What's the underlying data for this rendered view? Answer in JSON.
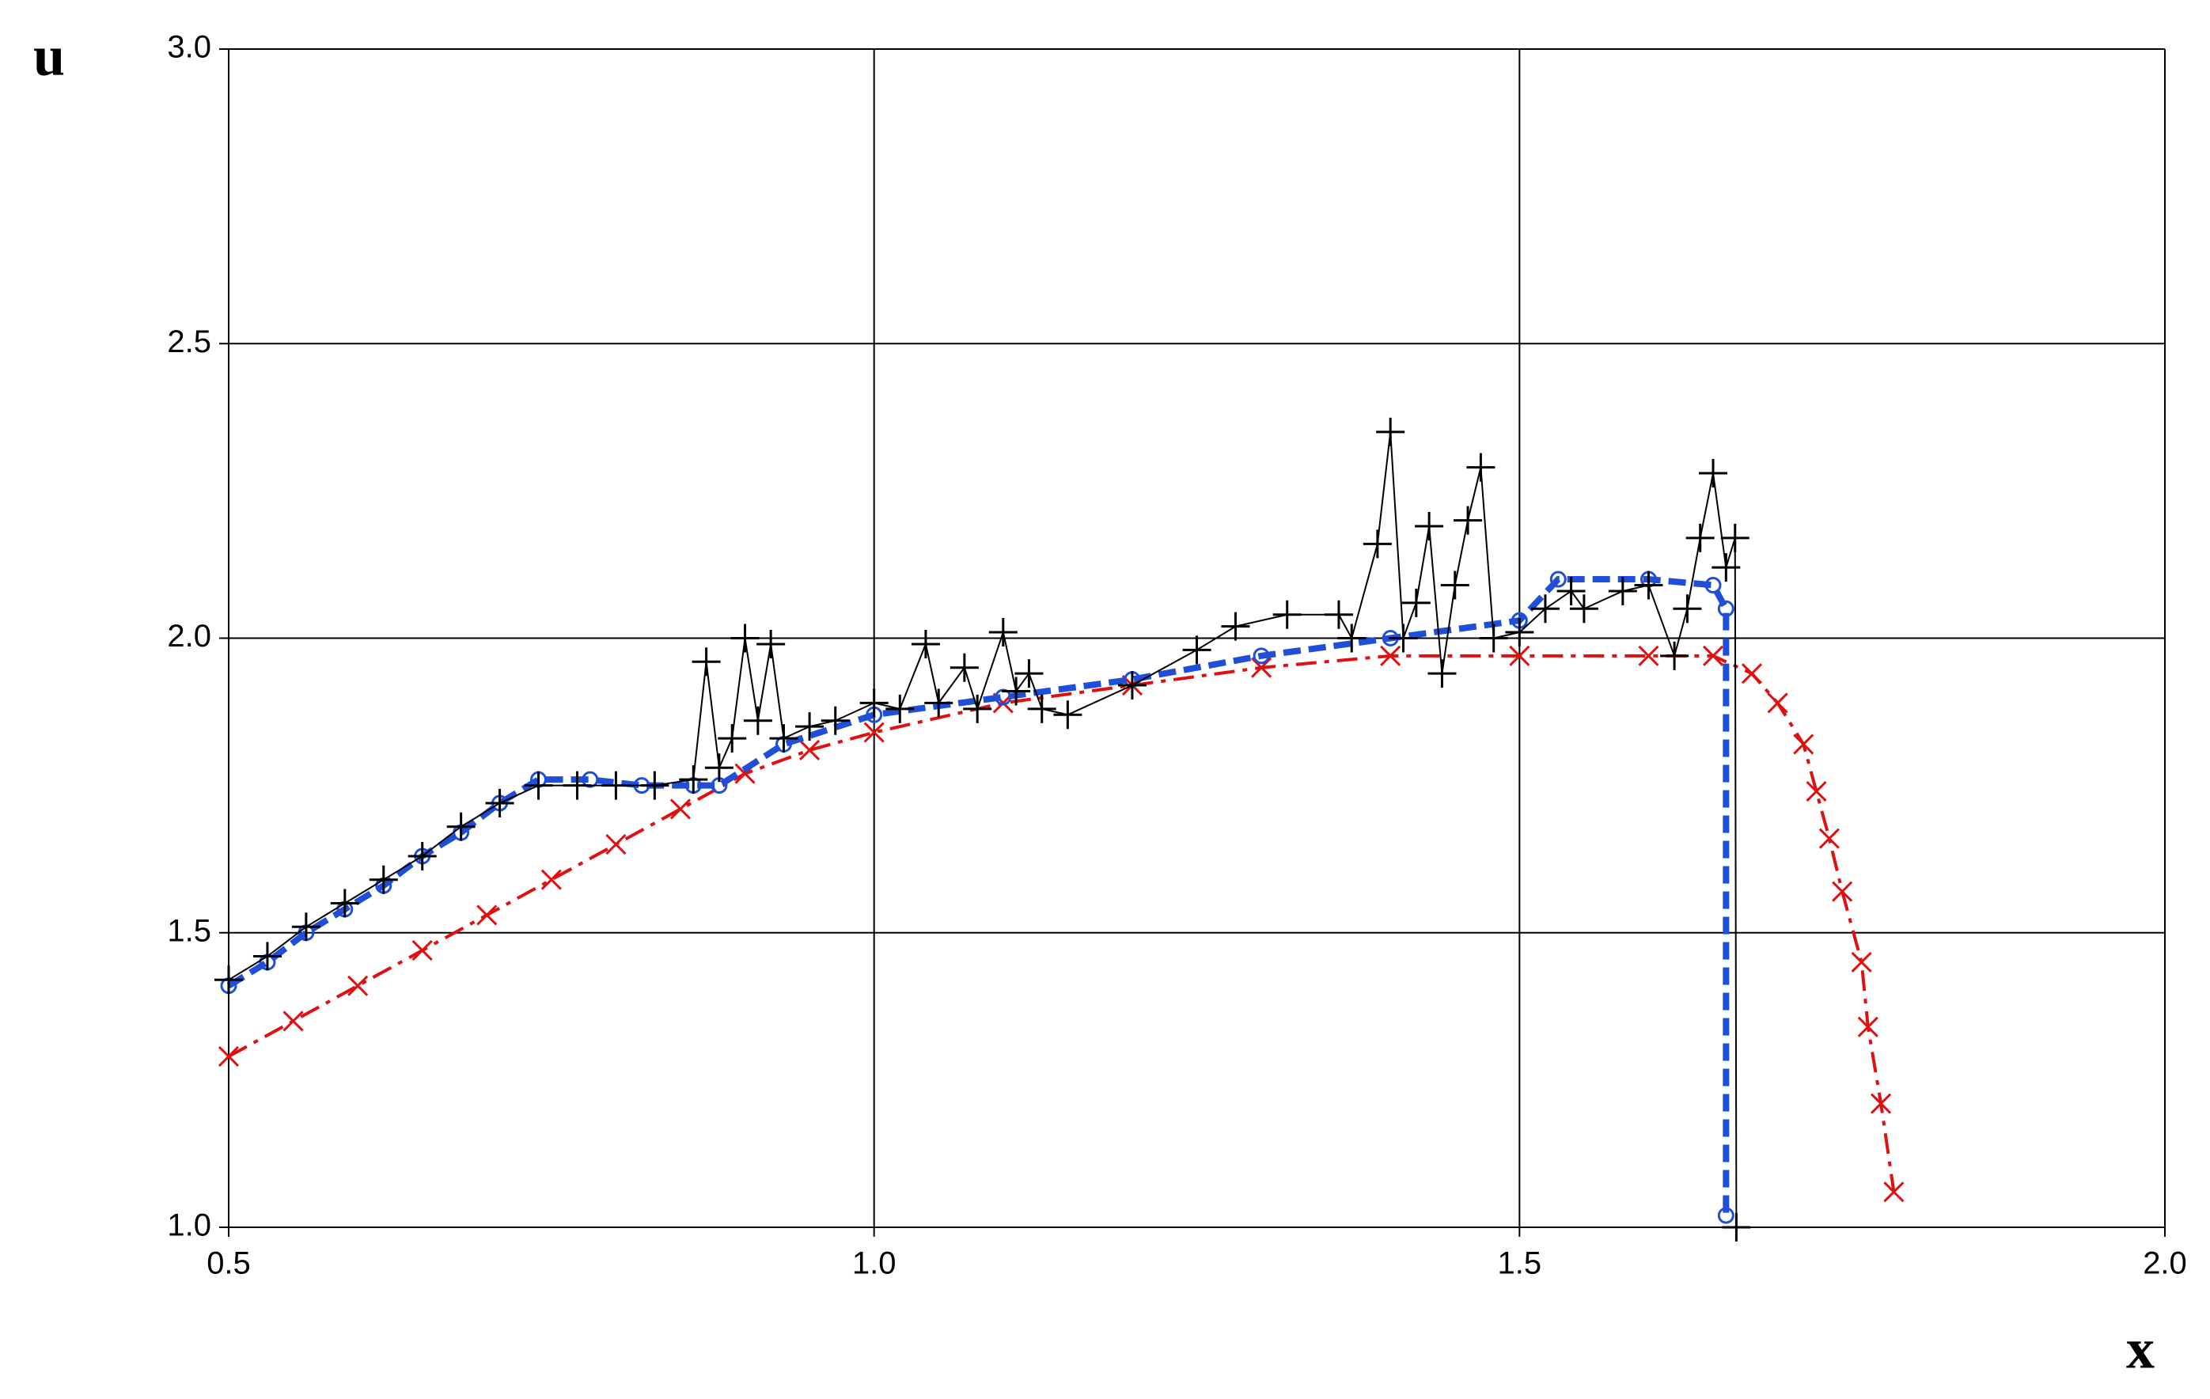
{
  "chart_data": {
    "type": "line",
    "xlabel": "x",
    "ylabel": "u",
    "xlim": [
      0.5,
      2
    ],
    "ylim": [
      1,
      3
    ],
    "xticks": [
      0.5,
      {
        "value": 1,
        "label": "1.0"
      },
      1.5,
      {
        "value": 2,
        "label": "2.0"
      }
    ],
    "yticks": [
      {
        "value": 1,
        "label": "1.0"
      },
      1.5,
      {
        "value": 2,
        "label": "2.0"
      },
      2.5,
      {
        "value": 3,
        "label": "3.0"
      }
    ],
    "grid": true,
    "series": [
      {
        "color": "#e01010",
        "marker": "x",
        "dash": "dashdot",
        "x": [
          0.5,
          0.55,
          0.6,
          0.65,
          0.7,
          0.75,
          0.8,
          0.85,
          0.9,
          0.95,
          1.0,
          1.1,
          1.2,
          1.3,
          1.4,
          1.5,
          1.6,
          1.65,
          1.68,
          1.7,
          1.72,
          1.73,
          1.74,
          1.75,
          1.765,
          1.77,
          1.78,
          1.79
        ],
        "values": [
          1.29,
          1.35,
          1.41,
          1.47,
          1.53,
          1.59,
          1.65,
          1.71,
          1.77,
          1.81,
          1.84,
          1.89,
          1.92,
          1.95,
          1.97,
          1.97,
          1.97,
          1.97,
          1.94,
          1.89,
          1.82,
          1.74,
          1.66,
          1.57,
          1.45,
          1.34,
          1.21,
          1.06
        ]
      },
      {
        "color": "#1f4fd8",
        "marker": "circle",
        "dash": "dash",
        "x": [
          0.5,
          0.53,
          0.56,
          0.59,
          0.62,
          0.65,
          0.68,
          0.71,
          0.74,
          0.78,
          0.82,
          0.86,
          0.88,
          0.93,
          1.0,
          1.1,
          1.2,
          1.3,
          1.4,
          1.5,
          1.53,
          1.6,
          1.65,
          1.66,
          1.66
        ],
        "values": [
          1.41,
          1.45,
          1.5,
          1.54,
          1.58,
          1.63,
          1.67,
          1.72,
          1.76,
          1.76,
          1.75,
          1.75,
          1.75,
          1.82,
          1.87,
          1.9,
          1.93,
          1.97,
          2.0,
          2.03,
          2.1,
          2.1,
          2.09,
          2.05,
          1.02
        ]
      },
      {
        "color": "#000000",
        "marker": "plus",
        "dash": "solid",
        "x": [
          0.5,
          0.53,
          0.56,
          0.59,
          0.62,
          0.65,
          0.68,
          0.71,
          0.74,
          0.77,
          0.8,
          0.83,
          0.86,
          0.87,
          0.88,
          0.89,
          0.9,
          0.91,
          0.92,
          0.93,
          0.95,
          0.97,
          1.0,
          1.02,
          1.04,
          1.05,
          1.07,
          1.08,
          1.1,
          1.11,
          1.12,
          1.13,
          1.15,
          1.2,
          1.25,
          1.28,
          1.32,
          1.36,
          1.37,
          1.39,
          1.4,
          1.41,
          1.42,
          1.43,
          1.44,
          1.45,
          1.46,
          1.47,
          1.48,
          1.5,
          1.52,
          1.54,
          1.55,
          1.58,
          1.6,
          1.62,
          1.63,
          1.64,
          1.65,
          1.66,
          1.667,
          1.668
        ],
        "values": [
          1.42,
          1.46,
          1.51,
          1.55,
          1.59,
          1.63,
          1.68,
          1.72,
          1.75,
          1.75,
          1.75,
          1.75,
          1.76,
          1.96,
          1.78,
          1.83,
          2.0,
          1.86,
          1.99,
          1.83,
          1.85,
          1.86,
          1.89,
          1.88,
          1.99,
          1.89,
          1.95,
          1.88,
          2.01,
          1.91,
          1.94,
          1.88,
          1.87,
          1.92,
          1.98,
          2.02,
          2.04,
          2.04,
          2.0,
          2.16,
          2.35,
          2.0,
          2.06,
          2.19,
          1.94,
          2.09,
          2.2,
          2.29,
          2.0,
          2.01,
          2.05,
          2.08,
          2.05,
          2.08,
          2.09,
          1.97,
          2.05,
          2.17,
          2.28,
          2.12,
          2.17,
          1.0
        ]
      }
    ]
  }
}
